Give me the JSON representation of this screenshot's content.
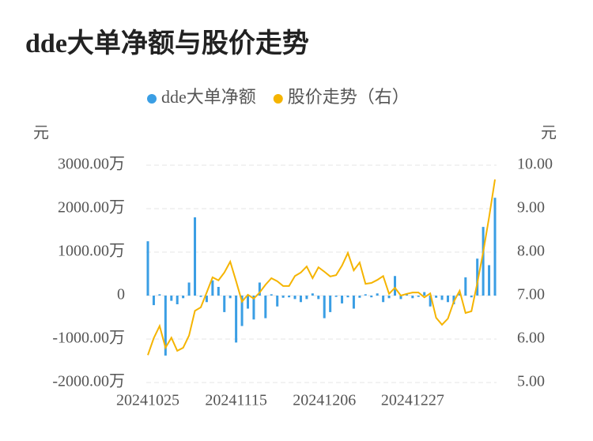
{
  "chart_data": {
    "type": "bar-line",
    "title": "dde大单净额与股价走势",
    "y_label": "元",
    "y2_label": "元",
    "categories": [
      "20241025",
      null,
      null,
      null,
      null,
      null,
      null,
      null,
      null,
      null,
      null,
      null,
      null,
      null,
      null,
      "20241115",
      null,
      null,
      null,
      null,
      null,
      null,
      null,
      null,
      null,
      null,
      null,
      null,
      null,
      null,
      "20241206",
      null,
      null,
      null,
      null,
      null,
      null,
      null,
      null,
      null,
      null,
      null,
      null,
      null,
      null,
      "20241227",
      null,
      null,
      null,
      null,
      null,
      null,
      null,
      null,
      null,
      null,
      null,
      null,
      null,
      null
    ],
    "series": [
      {
        "name": "dde大单净额",
        "color": "#3a9ee4",
        "type": "bar",
        "values": [
          1250,
          -220,
          30,
          -1380,
          -120,
          -200,
          -60,
          300,
          1800,
          -30,
          -150,
          350,
          200,
          -380,
          -60,
          -1080,
          -700,
          -300,
          -550,
          300,
          -520,
          30,
          -250,
          -50,
          -40,
          -80,
          -150,
          -80,
          50,
          -80,
          -520,
          -380,
          -30,
          -180,
          -40,
          -300,
          -50,
          30,
          -40,
          50,
          -150,
          -60,
          450,
          -80,
          30,
          -60,
          -30,
          80,
          -250,
          -50,
          -100,
          -150,
          -200,
          50,
          420,
          -40,
          850,
          1580,
          700,
          2250
        ]
      },
      {
        "name": "股价走势（右）",
        "color": "#f5b400",
        "type": "line",
        "axis": "y2",
        "values": [
          5.63,
          6.02,
          6.3,
          5.8,
          6.03,
          5.73,
          5.8,
          6.08,
          6.65,
          6.73,
          7.07,
          7.42,
          7.35,
          7.53,
          7.78,
          7.33,
          6.86,
          7.02,
          6.93,
          7.07,
          7.25,
          7.4,
          7.33,
          7.22,
          7.22,
          7.45,
          7.53,
          7.67,
          7.4,
          7.65,
          7.55,
          7.44,
          7.47,
          7.69,
          7.98,
          7.58,
          7.76,
          7.27,
          7.29,
          7.36,
          7.45,
          7.04,
          7.18,
          7.0,
          7.04,
          7.07,
          7.07,
          6.96,
          7.05,
          6.49,
          6.33,
          6.47,
          6.86,
          7.11,
          6.6,
          6.64,
          7.29,
          8.0,
          8.8,
          9.67
        ]
      }
    ],
    "ylim": [
      -2000,
      3000
    ],
    "yticks": [
      {
        "value": -2000,
        "label": "-2000.00万"
      },
      {
        "value": -1000,
        "label": "-1000.00万"
      },
      0,
      {
        "value": 1000,
        "label": "1000.00万"
      },
      {
        "value": 2000,
        "label": "2000.00万"
      },
      {
        "value": 3000,
        "label": "3000.00万"
      }
    ],
    "y2lim": [
      5,
      10
    ],
    "y2ticks": [
      {
        "value": 5,
        "label": "5.00"
      },
      {
        "value": 6,
        "label": "6.00"
      },
      {
        "value": 7,
        "label": "7.00"
      },
      {
        "value": 8,
        "label": "8.00"
      },
      {
        "value": 9,
        "label": "9.00"
      },
      {
        "value": 10,
        "label": "10.00"
      }
    ],
    "grid": true
  }
}
